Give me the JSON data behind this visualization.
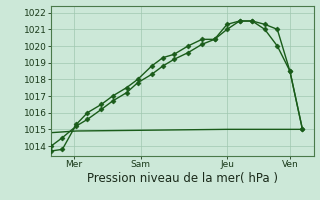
{
  "bg_color": "#cce8d8",
  "grid_color": "#a0c8b0",
  "line_color": "#1a5c1a",
  "ylabel": "Pression niveau de la mer( hPa )",
  "ylim": [
    1013.4,
    1022.4
  ],
  "yticks": [
    1014,
    1015,
    1016,
    1017,
    1018,
    1019,
    1020,
    1021,
    1022
  ],
  "xtick_labels": [
    "Mer",
    "Sam",
    "Jeu",
    "Ven"
  ],
  "xtick_positions": [
    0.08,
    0.32,
    0.63,
    0.855
  ],
  "line1_x": [
    0.0,
    0.04,
    0.09,
    0.13,
    0.18,
    0.22,
    0.27,
    0.31,
    0.36,
    0.4,
    0.44,
    0.49,
    0.54,
    0.585,
    0.63,
    0.675,
    0.72,
    0.765,
    0.81,
    0.855,
    0.9
  ],
  "line1_y": [
    1013.7,
    1013.8,
    1015.3,
    1016.0,
    1016.5,
    1017.0,
    1017.5,
    1018.0,
    1018.8,
    1019.3,
    1019.5,
    1020.0,
    1020.4,
    1020.4,
    1021.3,
    1021.5,
    1021.5,
    1021.0,
    1020.0,
    1018.5,
    1015.0
  ],
  "line2_x": [
    0.0,
    0.04,
    0.09,
    0.13,
    0.18,
    0.22,
    0.27,
    0.31,
    0.36,
    0.4,
    0.44,
    0.49,
    0.54,
    0.585,
    0.63,
    0.675,
    0.72,
    0.765,
    0.81,
    0.855,
    0.9
  ],
  "line2_y": [
    1014.0,
    1014.5,
    1015.2,
    1015.6,
    1016.2,
    1016.7,
    1017.2,
    1017.8,
    1018.3,
    1018.8,
    1019.2,
    1019.6,
    1020.1,
    1020.4,
    1021.0,
    1021.5,
    1021.5,
    1021.3,
    1021.0,
    1018.5,
    1015.0
  ],
  "line3_x": [
    0.0,
    0.09,
    0.63,
    0.9
  ],
  "line3_y": [
    1014.8,
    1014.9,
    1015.0,
    1015.0
  ],
  "marker": "D",
  "markersize": 2.5,
  "linewidth": 1.0,
  "tick_fontsize": 6.5,
  "xlabel_fontsize": 8.5
}
